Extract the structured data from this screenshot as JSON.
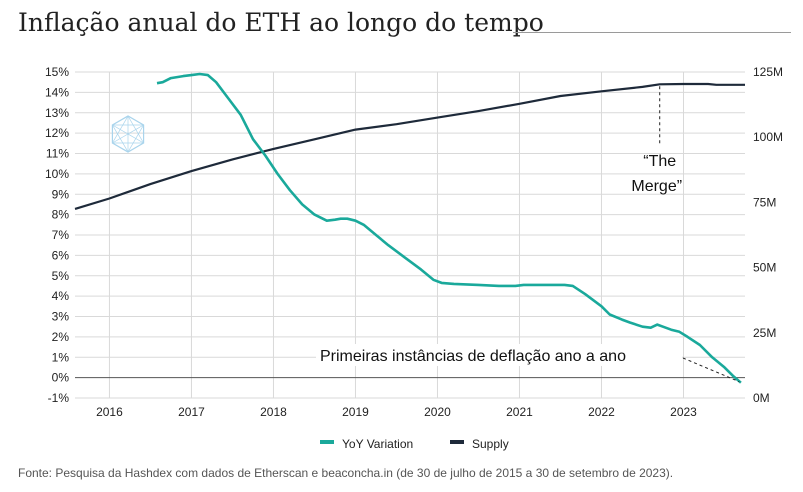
{
  "title": "Inflação anual do ETH ao longo do tempo",
  "source": "Fonte: Pesquisa da Hashdex com dados de Etherscan e beaconcha.in (de 30 de julho de 2015 a 30 de setembro de 2023).",
  "colors": {
    "yoy": "#1aa99b",
    "supply": "#1e2a3a",
    "grid": "#d9d9d9",
    "zero": "#555555",
    "axis_text": "#222222"
  },
  "chart_data": {
    "type": "line",
    "x_range": [
      2015.58,
      2023.75
    ],
    "x_ticks": [
      "2016",
      "2017",
      "2018",
      "2019",
      "2020",
      "2021",
      "2022",
      "2023"
    ],
    "y_left": {
      "range": [
        -1,
        15
      ],
      "ticks": [
        "15%",
        "14%",
        "13%",
        "12%",
        "11%",
        "10%",
        "9%",
        "8%",
        "7%",
        "6%",
        "5%",
        "4%",
        "3%",
        "2%",
        "1%",
        "0%",
        "-1%"
      ]
    },
    "y_right": {
      "range": [
        0,
        125
      ],
      "ticks": [
        "125M",
        "100M",
        "75M",
        "50M",
        "25M",
        "0M"
      ]
    },
    "grid": true,
    "legend_position": "bottom",
    "series": [
      {
        "name": "YoY Variation",
        "axis": "left",
        "points": [
          [
            2016.58,
            14.45
          ],
          [
            2016.65,
            14.5
          ],
          [
            2016.75,
            14.7
          ],
          [
            2016.9,
            14.8
          ],
          [
            2017.0,
            14.85
          ],
          [
            2017.1,
            14.9
          ],
          [
            2017.2,
            14.85
          ],
          [
            2017.3,
            14.5
          ],
          [
            2017.45,
            13.7
          ],
          [
            2017.6,
            12.9
          ],
          [
            2017.75,
            11.7
          ],
          [
            2017.9,
            10.9
          ],
          [
            2018.05,
            10.0
          ],
          [
            2018.2,
            9.2
          ],
          [
            2018.35,
            8.5
          ],
          [
            2018.5,
            8.0
          ],
          [
            2018.65,
            7.7
          ],
          [
            2018.75,
            7.75
          ],
          [
            2018.82,
            7.8
          ],
          [
            2018.9,
            7.8
          ],
          [
            2019.0,
            7.7
          ],
          [
            2019.1,
            7.5
          ],
          [
            2019.25,
            7.0
          ],
          [
            2019.4,
            6.5
          ],
          [
            2019.6,
            5.9
          ],
          [
            2019.8,
            5.3
          ],
          [
            2019.95,
            4.8
          ],
          [
            2020.05,
            4.65
          ],
          [
            2020.2,
            4.6
          ],
          [
            2020.5,
            4.55
          ],
          [
            2020.75,
            4.5
          ],
          [
            2020.95,
            4.5
          ],
          [
            2021.05,
            4.55
          ],
          [
            2021.3,
            4.55
          ],
          [
            2021.55,
            4.55
          ],
          [
            2021.65,
            4.5
          ],
          [
            2021.8,
            4.1
          ],
          [
            2022.0,
            3.5
          ],
          [
            2022.1,
            3.1
          ],
          [
            2022.25,
            2.85
          ],
          [
            2022.35,
            2.7
          ],
          [
            2022.5,
            2.5
          ],
          [
            2022.6,
            2.45
          ],
          [
            2022.68,
            2.6
          ],
          [
            2022.75,
            2.5
          ],
          [
            2022.85,
            2.35
          ],
          [
            2022.95,
            2.25
          ],
          [
            2023.05,
            2.0
          ],
          [
            2023.2,
            1.6
          ],
          [
            2023.35,
            1.0
          ],
          [
            2023.5,
            0.5
          ],
          [
            2023.6,
            0.1
          ],
          [
            2023.7,
            -0.25
          ]
        ]
      },
      {
        "name": "Supply",
        "axis": "right",
        "points": [
          [
            2015.58,
            72.5
          ],
          [
            2016.0,
            76.5
          ],
          [
            2016.5,
            82.0
          ],
          [
            2017.0,
            87.0
          ],
          [
            2017.5,
            91.5
          ],
          [
            2018.0,
            95.5
          ],
          [
            2018.5,
            99.2
          ],
          [
            2019.0,
            102.9
          ],
          [
            2019.5,
            105.0
          ],
          [
            2020.0,
            107.5
          ],
          [
            2020.5,
            110.0
          ],
          [
            2021.0,
            112.8
          ],
          [
            2021.5,
            115.8
          ],
          [
            2022.0,
            117.6
          ],
          [
            2022.5,
            119.3
          ],
          [
            2022.71,
            120.3
          ],
          [
            2023.0,
            120.4
          ],
          [
            2023.3,
            120.4
          ],
          [
            2023.4,
            120.1
          ],
          [
            2023.75,
            120.1
          ]
        ]
      }
    ],
    "annotations": {
      "merge_line1": "“The",
      "merge_line2": "Merge”",
      "deflation": "Primeiras instâncias de deflação ano a ano"
    }
  }
}
